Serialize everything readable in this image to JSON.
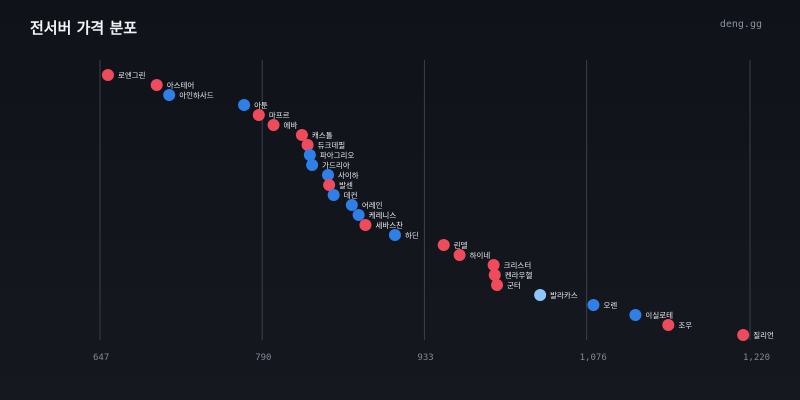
{
  "header": {
    "title": "전서버 가격 분포",
    "brand": "deng.gg"
  },
  "colors": {
    "red": "#f04b5c",
    "blue": "#2f7fe8",
    "lightblue": "#8ec5ff",
    "grid": "#3a404a"
  },
  "chart_data": {
    "type": "scatter",
    "title": "전서버 가격 분포",
    "xlabel": "",
    "ylabel": "",
    "xlim": [
      647,
      1220
    ],
    "xticks": [
      647,
      790,
      933,
      1076,
      1220
    ],
    "xtick_labels": [
      "647",
      "790",
      "933",
      "1,076",
      "1,220"
    ],
    "grid": "vertical",
    "legend": "none",
    "points": [
      {
        "label": "로엔그린",
        "value": 654,
        "color": "red"
      },
      {
        "label": "아스테어",
        "value": 697,
        "color": "red"
      },
      {
        "label": "아인하사드",
        "value": 708,
        "color": "blue"
      },
      {
        "label": "아툰",
        "value": 774,
        "color": "blue"
      },
      {
        "label": "마프르",
        "value": 787,
        "color": "red"
      },
      {
        "label": "에바",
        "value": 800,
        "color": "red"
      },
      {
        "label": "캐스톨",
        "value": 825,
        "color": "red"
      },
      {
        "label": "듀크데필",
        "value": 830,
        "color": "red"
      },
      {
        "label": "파아그리오",
        "value": 832,
        "color": "blue"
      },
      {
        "label": "가드리아",
        "value": 834,
        "color": "blue"
      },
      {
        "label": "사이하",
        "value": 848,
        "color": "blue"
      },
      {
        "label": "발센",
        "value": 849,
        "color": "red"
      },
      {
        "label": "데컨",
        "value": 853,
        "color": "blue"
      },
      {
        "label": "어레인",
        "value": 869,
        "color": "blue"
      },
      {
        "label": "케레니스",
        "value": 875,
        "color": "blue"
      },
      {
        "label": "세바스찬",
        "value": 881,
        "color": "red"
      },
      {
        "label": "하딘",
        "value": 907,
        "color": "blue"
      },
      {
        "label": "린델",
        "value": 950,
        "color": "red"
      },
      {
        "label": "하이네",
        "value": 964,
        "color": "red"
      },
      {
        "label": "크리스터",
        "value": 994,
        "color": "red"
      },
      {
        "label": "켄라우헬",
        "value": 995,
        "color": "red"
      },
      {
        "label": "군터",
        "value": 997,
        "color": "red"
      },
      {
        "label": "발라카스",
        "value": 1035,
        "color": "lightblue"
      },
      {
        "label": "오렌",
        "value": 1082,
        "color": "blue"
      },
      {
        "label": "이실로테",
        "value": 1119,
        "color": "blue"
      },
      {
        "label": "조우",
        "value": 1148,
        "color": "red"
      },
      {
        "label": "질리언",
        "value": 1214,
        "color": "red"
      }
    ]
  }
}
